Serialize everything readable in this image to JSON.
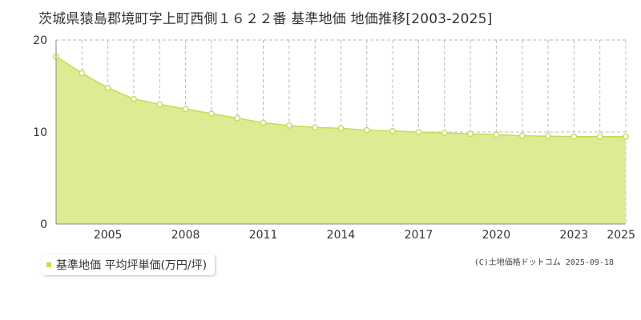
{
  "title": "茨城県猿島郡境町字上町西側１６２２番 基準地価 地価推移[2003-2025]",
  "legend_label": "基準地価 平均坪単価(万円/坪)",
  "credit": "(C)土地価格ドットコム 2025-09-18",
  "colors": {
    "fill": "#dcec93",
    "line": "#c3dc55",
    "marker_fill": "#ffffff",
    "marker_stroke": "#c3dc55",
    "grid": "#bbbbbb",
    "axis_text": "#333333",
    "legend_swatch": "#c3dc55"
  },
  "chart_data": {
    "type": "area",
    "x": [
      2003,
      2004,
      2005,
      2006,
      2007,
      2008,
      2009,
      2010,
      2011,
      2012,
      2013,
      2014,
      2015,
      2016,
      2017,
      2018,
      2019,
      2020,
      2021,
      2022,
      2023,
      2024,
      2025
    ],
    "series": [
      {
        "name": "基準地価 平均坪単価(万円/坪)",
        "values": [
          18.2,
          16.4,
          14.8,
          13.6,
          13.0,
          12.5,
          12.0,
          11.5,
          11.0,
          10.7,
          10.5,
          10.4,
          10.2,
          10.1,
          10.0,
          9.9,
          9.8,
          9.7,
          9.6,
          9.55,
          9.5,
          9.5,
          9.5
        ]
      }
    ],
    "x_tick_labels": [
      2005,
      2008,
      2011,
      2014,
      2017,
      2020,
      2023,
      2025
    ],
    "y_ticks": [
      0,
      10,
      20
    ],
    "ylim": [
      0,
      20
    ],
    "xlim": [
      2003,
      2025
    ],
    "grid": true,
    "legend_position": "bottom-left"
  }
}
